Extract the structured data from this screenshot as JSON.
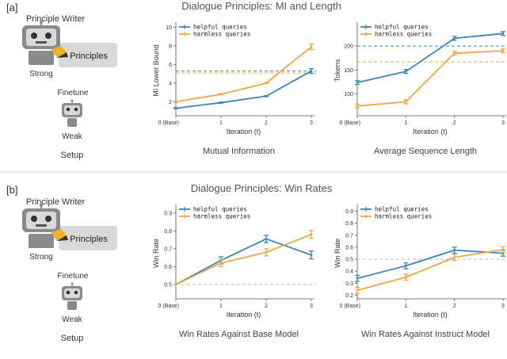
{
  "panels": [
    {
      "tag": "[a]",
      "heading": "Dialogue Principles: MI and Length",
      "setup": {
        "writer_label": "Principle Writer",
        "principles_label": "Principles",
        "strong_label": "Strong",
        "finetune_label": "Finetune",
        "weak_label": "Weak",
        "setup_label": "Setup"
      }
    },
    {
      "tag": "[b]",
      "heading": "Dialogue Principles: Win Rates",
      "setup": {
        "writer_label": "Principle Writer",
        "principles_label": "Principles",
        "strong_label": "Strong",
        "finetune_label": "Finetune",
        "weak_label": "Weak",
        "setup_label": "Setup"
      }
    }
  ],
  "colors": {
    "helpful": "#3a87b6",
    "harmless": "#eba848",
    "robot_body": "#8a8a8a",
    "robot_face": "#d9d9d9",
    "principles_box": "#d9d9d9",
    "pencil": "#e8b22a",
    "reference_line": "#bbbbbb",
    "separator": "#f7e6da"
  },
  "chart_data": [
    {
      "type": "line",
      "title": "Mutual Information",
      "xlabel": "Iteration (t)",
      "ylabel": "MI Lower Bound",
      "x": [
        0,
        1,
        2,
        3
      ],
      "x_tick_labels": [
        "0 (Base)",
        "1",
        "2",
        "3"
      ],
      "ylim": [
        0.5,
        10.2
      ],
      "y_ticks": [
        2,
        4,
        6,
        8,
        10
      ],
      "y_tick_labels": [
        "2",
        "4",
        "6",
        "8",
        "10"
      ],
      "legend_position": "top-left",
      "series": [
        {
          "name": "helpful queries",
          "color": "#3a87b6",
          "values": [
            1.3,
            1.9,
            2.6,
            5.3
          ],
          "err": [
            0.05,
            0.05,
            0.05,
            0.25
          ],
          "ref_line": 5.3
        },
        {
          "name": "harmless queries",
          "color": "#eba848",
          "values": [
            2.0,
            2.8,
            4.0,
            7.9
          ],
          "err": [
            0.05,
            0.05,
            0.05,
            0.3
          ],
          "ref_line": 5.1
        }
      ]
    },
    {
      "type": "line",
      "title": "Average Sequence Length",
      "xlabel": "Iteration (t)",
      "ylabel": "Tokens",
      "x": [
        0,
        1,
        2,
        3
      ],
      "x_tick_labels": [
        "0 (Base)",
        "1",
        "2",
        "3"
      ],
      "ylim": [
        55,
        243
      ],
      "y_ticks": [
        100,
        150,
        200
      ],
      "y_tick_labels": [
        "100",
        "150",
        "200"
      ],
      "legend_position": "top-left",
      "series": [
        {
          "name": "helpful queries",
          "color": "#3a87b6",
          "values": [
            124,
            147,
            216,
            226
          ],
          "err": [
            4,
            4,
            4,
            4
          ],
          "ref_line": 200
        },
        {
          "name": "harmless queries",
          "color": "#eba848",
          "values": [
            75,
            84,
            185,
            190
          ],
          "err": [
            4,
            4,
            4,
            4
          ],
          "ref_line": 167
        }
      ]
    },
    {
      "type": "line",
      "title": "Win Rates Against Base Model",
      "xlabel": "Iteration (t)",
      "ylabel": "Win Rate",
      "x": [
        0,
        1,
        2,
        3
      ],
      "x_tick_labels": [
        "0 (Base)",
        "1",
        "2",
        "3"
      ],
      "ylim": [
        0.42,
        0.93
      ],
      "y_ticks": [
        0.5,
        0.6,
        0.7,
        0.8,
        0.9
      ],
      "y_tick_labels": [
        "0.5",
        "0.6",
        "0.7",
        "0.8",
        "0.9"
      ],
      "legend_position": "top-left",
      "series": [
        {
          "name": "helpful queries",
          "color": "#3a87b6",
          "values": [
            0.5,
            0.635,
            0.755,
            0.665
          ],
          "err": [
            0,
            0.02,
            0.02,
            0.022
          ],
          "ref_line": 0.5
        },
        {
          "name": "harmless queries",
          "color": "#eba848",
          "values": [
            0.5,
            0.62,
            0.68,
            0.78
          ],
          "err": [
            0,
            0.02,
            0.02,
            0.022
          ]
        }
      ]
    },
    {
      "type": "line",
      "title": "Win Rates Against Instruct Model",
      "xlabel": "Iteration (t)",
      "ylabel": "Win Rate",
      "x": [
        0,
        1,
        2,
        3
      ],
      "x_tick_labels": [
        "0 (Base)",
        "1",
        "2",
        "3"
      ],
      "ylim": [
        0.17,
        0.93
      ],
      "y_ticks": [
        0.2,
        0.3,
        0.4,
        0.5,
        0.6,
        0.7,
        0.8,
        0.9
      ],
      "y_tick_labels": [
        "0.2",
        "0.3",
        "0.4",
        "0.5",
        "0.6",
        "0.7",
        "0.8",
        "0.9"
      ],
      "legend_position": "top-left",
      "series": [
        {
          "name": "helpful queries",
          "color": "#3a87b6",
          "values": [
            0.34,
            0.445,
            0.575,
            0.55
          ],
          "err": [
            0.025,
            0.025,
            0.025,
            0.025
          ],
          "ref_line": 0.5
        },
        {
          "name": "harmless queries",
          "color": "#eba848",
          "values": [
            0.24,
            0.35,
            0.515,
            0.58
          ],
          "err": [
            0.025,
            0.025,
            0.025,
            0.025
          ]
        }
      ]
    }
  ]
}
